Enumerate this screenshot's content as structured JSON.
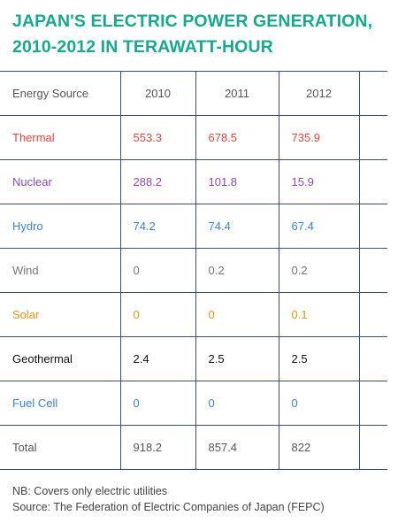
{
  "title_lines": [
    "JAPAN'S ELECTRIC POWER GENERATION,",
    "2010-2012 IN TERAWATT-HOUR"
  ],
  "colors": {
    "title": "#17a98b",
    "border": "#3f4f66",
    "default_text": "#555555"
  },
  "chart_data": {
    "type": "table",
    "title": "JAPAN'S ELECTRIC POWER GENERATION, 2010-2012 IN TERAWATT-HOUR",
    "columns": [
      "Energy Source",
      "2010",
      "2011",
      "2012"
    ],
    "rows": [
      {
        "source": "Thermal",
        "values": [
          "553.3",
          "678.5",
          "735.9"
        ],
        "color": "#e8423e"
      },
      {
        "source": "Nuclear",
        "values": [
          "288.2",
          "101.8",
          "15.9"
        ],
        "color": "#8a4ab0"
      },
      {
        "source": "Hydro",
        "values": [
          "74.2",
          "74.4",
          "67.4"
        ],
        "color": "#3d7fd6"
      },
      {
        "source": "Wind",
        "values": [
          "0",
          "0.2",
          "0.2"
        ],
        "color": "#777777"
      },
      {
        "source": "Solar",
        "values": [
          "0",
          "0",
          "0.1"
        ],
        "color": "#e89414"
      },
      {
        "source": "Geothermal",
        "values": [
          "2.4",
          "2.5",
          "2.5"
        ],
        "color": "#111111"
      },
      {
        "source": "Fuel Cell",
        "values": [
          "0",
          "0",
          "0"
        ],
        "color": "#3d7fd6"
      },
      {
        "source": "Total",
        "values": [
          "918.2",
          "857.4",
          "822"
        ],
        "color": "#555555"
      }
    ]
  },
  "footnotes": [
    "NB: Covers only electric utilities",
    "Source: The Federation of Electric Companies of Japan (FEPC)"
  ]
}
